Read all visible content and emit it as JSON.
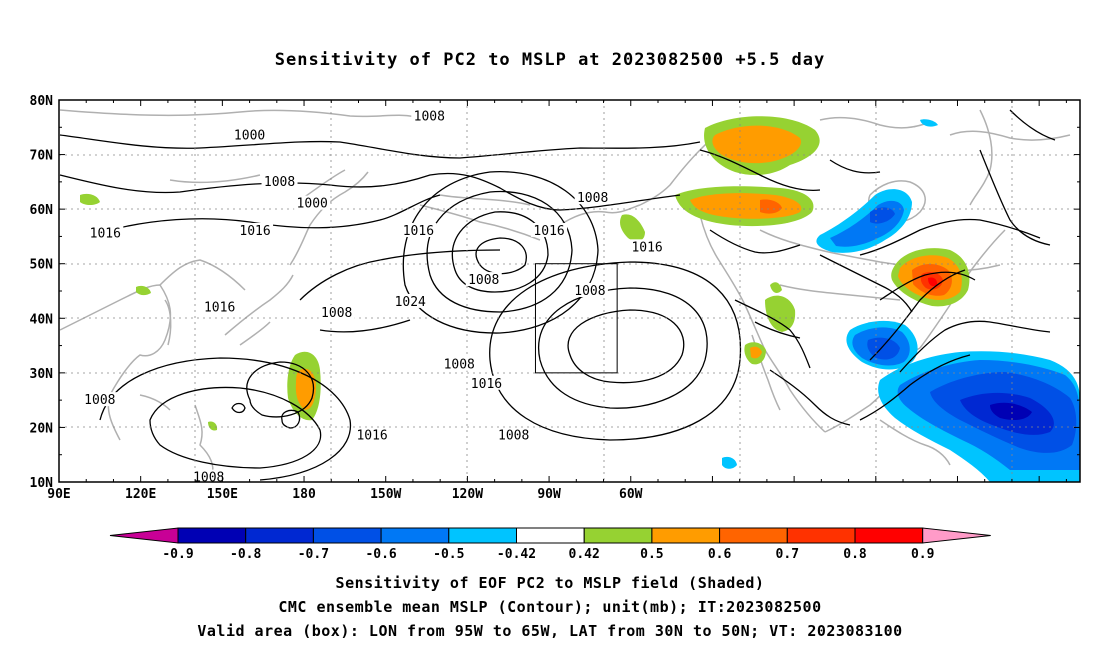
{
  "title": "Sensitivity of PC2 to MSLP at 2023082500 +5.5 day",
  "lat_labels": [
    "80N",
    "70N",
    "60N",
    "50N",
    "40N",
    "30N",
    "20N",
    "10N"
  ],
  "lon_labels": [
    "90E",
    "120E",
    "150E",
    "180",
    "150W",
    "120W",
    "90W",
    "60W"
  ],
  "contour_labels": [
    {
      "text": "1000",
      "lon": 160,
      "lat": 73.5
    },
    {
      "text": "1008",
      "lon": 171,
      "lat": 65
    },
    {
      "text": "1016",
      "lon": 107,
      "lat": 55.5
    },
    {
      "text": "1016",
      "lon": 162,
      "lat": 56
    },
    {
      "text": "1000",
      "lon": 183,
      "lat": 61
    },
    {
      "text": "1016",
      "lon": 149,
      "lat": 42
    },
    {
      "text": "1008",
      "lon": 192,
      "lat": 41
    },
    {
      "text": "1024",
      "lon": 219,
      "lat": 43
    },
    {
      "text": "1016",
      "lon": 222,
      "lat": 56
    },
    {
      "text": "1008",
      "lon": 226,
      "lat": 77
    },
    {
      "text": "1008",
      "lon": 237,
      "lat": 31.5
    },
    {
      "text": "1008",
      "lon": 246,
      "lat": 47
    },
    {
      "text": "1016",
      "lon": 247,
      "lat": 28
    },
    {
      "text": "1016",
      "lon": 205,
      "lat": 18.5
    },
    {
      "text": "1008",
      "lon": 105,
      "lat": 25
    },
    {
      "text": "1008",
      "lon": 145,
      "lat": 10.8
    },
    {
      "text": "1008",
      "lon": 257,
      "lat": 18.5
    },
    {
      "text": "1008",
      "lon": 286,
      "lat": 62
    },
    {
      "text": "1016",
      "lon": 270,
      "lat": 56
    },
    {
      "text": "1008",
      "lon": 285,
      "lat": 45
    },
    {
      "text": "1016",
      "lon": 306,
      "lat": 53
    }
  ],
  "colorbar": {
    "labels": [
      "-0.9",
      "-0.8",
      "-0.7",
      "-0.6",
      "-0.5",
      "-0.42",
      "0.42",
      "0.5",
      "0.6",
      "0.7",
      "0.8",
      "0.9"
    ],
    "colors": [
      "#0000b4",
      "#0028d2",
      "#0050e6",
      "#0078f5",
      "#00c4ff",
      "#ffffff",
      "#96d232",
      "#ff9c00",
      "#ff6400",
      "#ff3200",
      "#ff0000"
    ],
    "under_color": "#c80096",
    "over_color": "#ff9bc8"
  },
  "valid_box": {
    "lon_min": 265,
    "lon_max": 295,
    "lat_min": 30,
    "lat_max": 50
  },
  "caption": [
    "Sensitivity of EOF PC2 to MSLP field (Shaded)",
    "CMC ensemble mean MSLP (Contour); unit(mb); IT:2023082500",
    "Valid area (box): LON from 95W to 65W, LAT from 30N to 50N; VT: 2023083100"
  ]
}
